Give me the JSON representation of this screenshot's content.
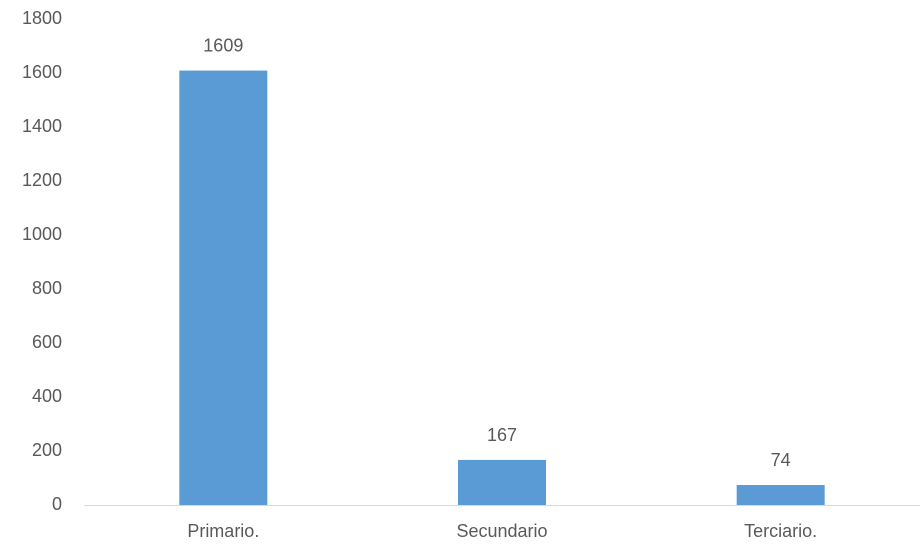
{
  "chart_data": {
    "type": "bar",
    "title": "",
    "xlabel": "",
    "ylabel": "",
    "categories": [
      "Primario.",
      "Secundario",
      "Terciario."
    ],
    "values": [
      1609,
      167,
      74
    ],
    "data_labels": [
      "1609",
      "167",
      "74"
    ],
    "ylim": [
      0,
      1800
    ],
    "yticks": [
      0,
      200,
      400,
      600,
      800,
      1000,
      1200,
      1400,
      1600,
      1800
    ],
    "ytick_labels": [
      "0",
      "200",
      "400",
      "600",
      "800",
      "1000",
      "1200",
      "1400",
      "1600",
      "1800"
    ],
    "grid": false,
    "legend": "none",
    "bar_color": "#5B9BD5",
    "axis_color": "#D9D9D9",
    "text_color": "#595959"
  }
}
